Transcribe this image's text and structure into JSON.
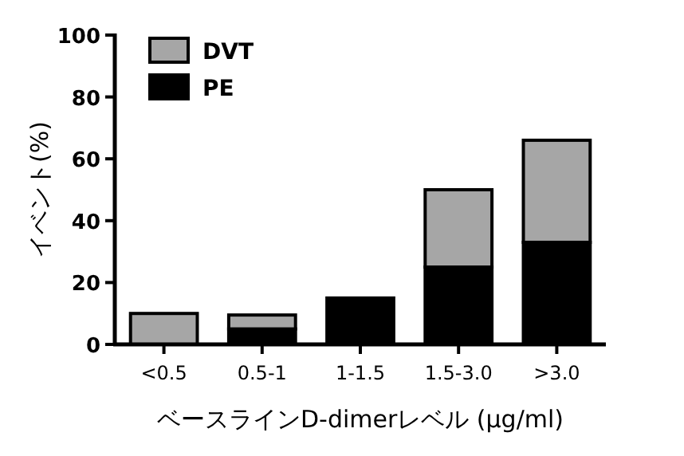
{
  "chart_data": {
    "type": "bar",
    "stacked": true,
    "xlabel": "ベースラインD-dimerレベル (μg/ml)",
    "ylabel": "イベント(%)",
    "categories": [
      "<0.5",
      "0.5-1",
      "1-1.5",
      "1.5-3.0",
      ">3.0"
    ],
    "series": [
      {
        "name": "PE",
        "color": "#000000",
        "values": [
          0,
          5,
          15,
          25,
          33
        ]
      },
      {
        "name": "DVT",
        "color": "#a6a6a6",
        "values": [
          10,
          4.5,
          0,
          25,
          33
        ]
      }
    ],
    "ylim": [
      0,
      100
    ],
    "yticks": [
      0,
      20,
      40,
      60,
      80,
      100
    ],
    "legend": "top left",
    "grid": false
  }
}
